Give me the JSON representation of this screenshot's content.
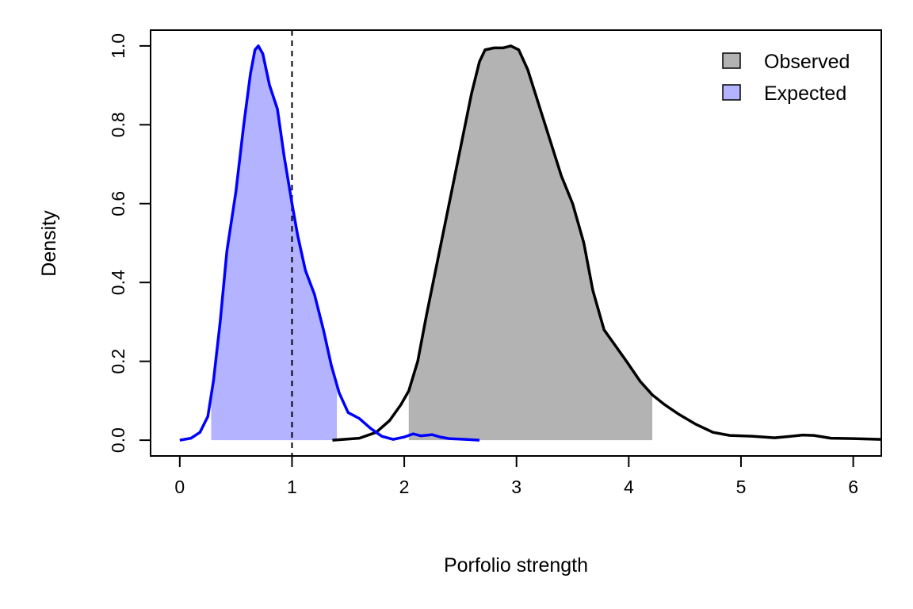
{
  "chart_data": {
    "type": "area",
    "xlabel": "Porfolio strength",
    "ylabel": "Density",
    "xlim": [
      -0.26,
      6.25
    ],
    "ylim": [
      -0.04,
      1.04
    ],
    "x_ticks": [
      0,
      1,
      2,
      3,
      4,
      5,
      6
    ],
    "y_ticks": [
      0.0,
      0.2,
      0.4,
      0.6,
      0.8,
      1.0
    ],
    "y_tick_labels": [
      "0.0",
      "0.2",
      "0.4",
      "0.6",
      "0.8",
      "1.0"
    ],
    "grid": false,
    "legend": {
      "position": "top-right"
    },
    "reference_line": {
      "x": 1.0,
      "style": "dashed",
      "color": "#000000"
    },
    "series": [
      {
        "name": "Observed",
        "fill_color": "#b3b3b3",
        "line_color": "#000000",
        "shaded_interval": [
          2.04,
          4.21
        ],
        "points": [
          [
            1.36,
            0.0
          ],
          [
            1.6,
            0.005
          ],
          [
            1.75,
            0.02
          ],
          [
            1.87,
            0.05
          ],
          [
            1.97,
            0.09
          ],
          [
            2.04,
            0.125
          ],
          [
            2.12,
            0.2
          ],
          [
            2.2,
            0.32
          ],
          [
            2.3,
            0.46
          ],
          [
            2.4,
            0.6
          ],
          [
            2.5,
            0.74
          ],
          [
            2.6,
            0.88
          ],
          [
            2.67,
            0.96
          ],
          [
            2.72,
            0.99
          ],
          [
            2.8,
            0.995
          ],
          [
            2.88,
            0.995
          ],
          [
            2.95,
            1.0
          ],
          [
            3.02,
            0.99
          ],
          [
            3.1,
            0.94
          ],
          [
            3.2,
            0.85
          ],
          [
            3.3,
            0.76
          ],
          [
            3.4,
            0.67
          ],
          [
            3.5,
            0.6
          ],
          [
            3.6,
            0.5
          ],
          [
            3.68,
            0.38
          ],
          [
            3.78,
            0.28
          ],
          [
            3.88,
            0.24
          ],
          [
            3.98,
            0.2
          ],
          [
            4.1,
            0.15
          ],
          [
            4.21,
            0.115
          ],
          [
            4.32,
            0.09
          ],
          [
            4.45,
            0.065
          ],
          [
            4.6,
            0.04
          ],
          [
            4.75,
            0.02
          ],
          [
            4.9,
            0.012
          ],
          [
            5.1,
            0.01
          ],
          [
            5.3,
            0.006
          ],
          [
            5.45,
            0.01
          ],
          [
            5.55,
            0.013
          ],
          [
            5.65,
            0.012
          ],
          [
            5.8,
            0.005
          ],
          [
            6.0,
            0.004
          ],
          [
            6.25,
            0.002
          ]
        ]
      },
      {
        "name": "Expected",
        "fill_color": "#b3b3ff",
        "line_color": "#0000ff",
        "shaded_interval": [
          0.28,
          1.4
        ],
        "points": [
          [
            0.0,
            0.0
          ],
          [
            0.1,
            0.005
          ],
          [
            0.18,
            0.02
          ],
          [
            0.25,
            0.06
          ],
          [
            0.3,
            0.15
          ],
          [
            0.36,
            0.3
          ],
          [
            0.42,
            0.48
          ],
          [
            0.5,
            0.63
          ],
          [
            0.57,
            0.8
          ],
          [
            0.63,
            0.93
          ],
          [
            0.67,
            0.99
          ],
          [
            0.7,
            1.0
          ],
          [
            0.74,
            0.98
          ],
          [
            0.8,
            0.9
          ],
          [
            0.87,
            0.84
          ],
          [
            0.93,
            0.72
          ],
          [
            1.0,
            0.6
          ],
          [
            1.05,
            0.52
          ],
          [
            1.12,
            0.43
          ],
          [
            1.2,
            0.37
          ],
          [
            1.28,
            0.28
          ],
          [
            1.35,
            0.19
          ],
          [
            1.42,
            0.12
          ],
          [
            1.5,
            0.07
          ],
          [
            1.6,
            0.055
          ],
          [
            1.7,
            0.03
          ],
          [
            1.8,
            0.01
          ],
          [
            1.9,
            0.002
          ],
          [
            2.0,
            0.008
          ],
          [
            2.08,
            0.016
          ],
          [
            2.15,
            0.011
          ],
          [
            2.25,
            0.014
          ],
          [
            2.32,
            0.008
          ],
          [
            2.4,
            0.004
          ],
          [
            2.55,
            0.002
          ],
          [
            2.67,
            0.0
          ]
        ]
      }
    ]
  }
}
